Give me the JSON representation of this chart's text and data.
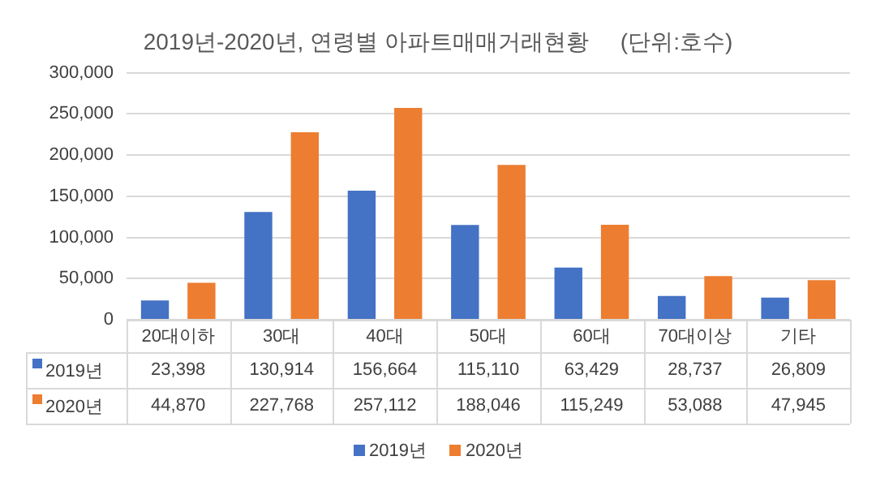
{
  "chart_data": {
    "type": "bar",
    "title": "2019년-2020년, 연령별 아파트매매거래현황     (단위:호수)",
    "categories": [
      "20대이하",
      "30대",
      "40대",
      "50대",
      "60대",
      "70대이상",
      "기타"
    ],
    "series": [
      {
        "name": "2019년",
        "color": "#4472c4",
        "values": [
          23398,
          130914,
          156664,
          115110,
          63429,
          28737,
          26809
        ],
        "value_labels": [
          "23,398",
          "130,914",
          "156,664",
          "115,110",
          "63,429",
          "28,737",
          "26,809"
        ]
      },
      {
        "name": "2020년",
        "color": "#ed7d31",
        "values": [
          44870,
          227768,
          257112,
          188046,
          115249,
          53088,
          47945
        ],
        "value_labels": [
          "44,870",
          "227,768",
          "257,112",
          "188,046",
          "115,249",
          "53,088",
          "47,945"
        ]
      }
    ],
    "ylim": [
      0,
      300000
    ],
    "yticks": [
      0,
      {
        "value": 50000,
        "label": "50,000"
      },
      {
        "value": 100000,
        "label": "100,000"
      },
      {
        "value": 150000,
        "label": "150,000"
      },
      {
        "value": 200000,
        "label": "200,000"
      },
      {
        "value": 250000,
        "label": "250,000"
      },
      {
        "value": 300000,
        "label": "300,000"
      }
    ],
    "grid": "y",
    "legend": "bottom"
  }
}
